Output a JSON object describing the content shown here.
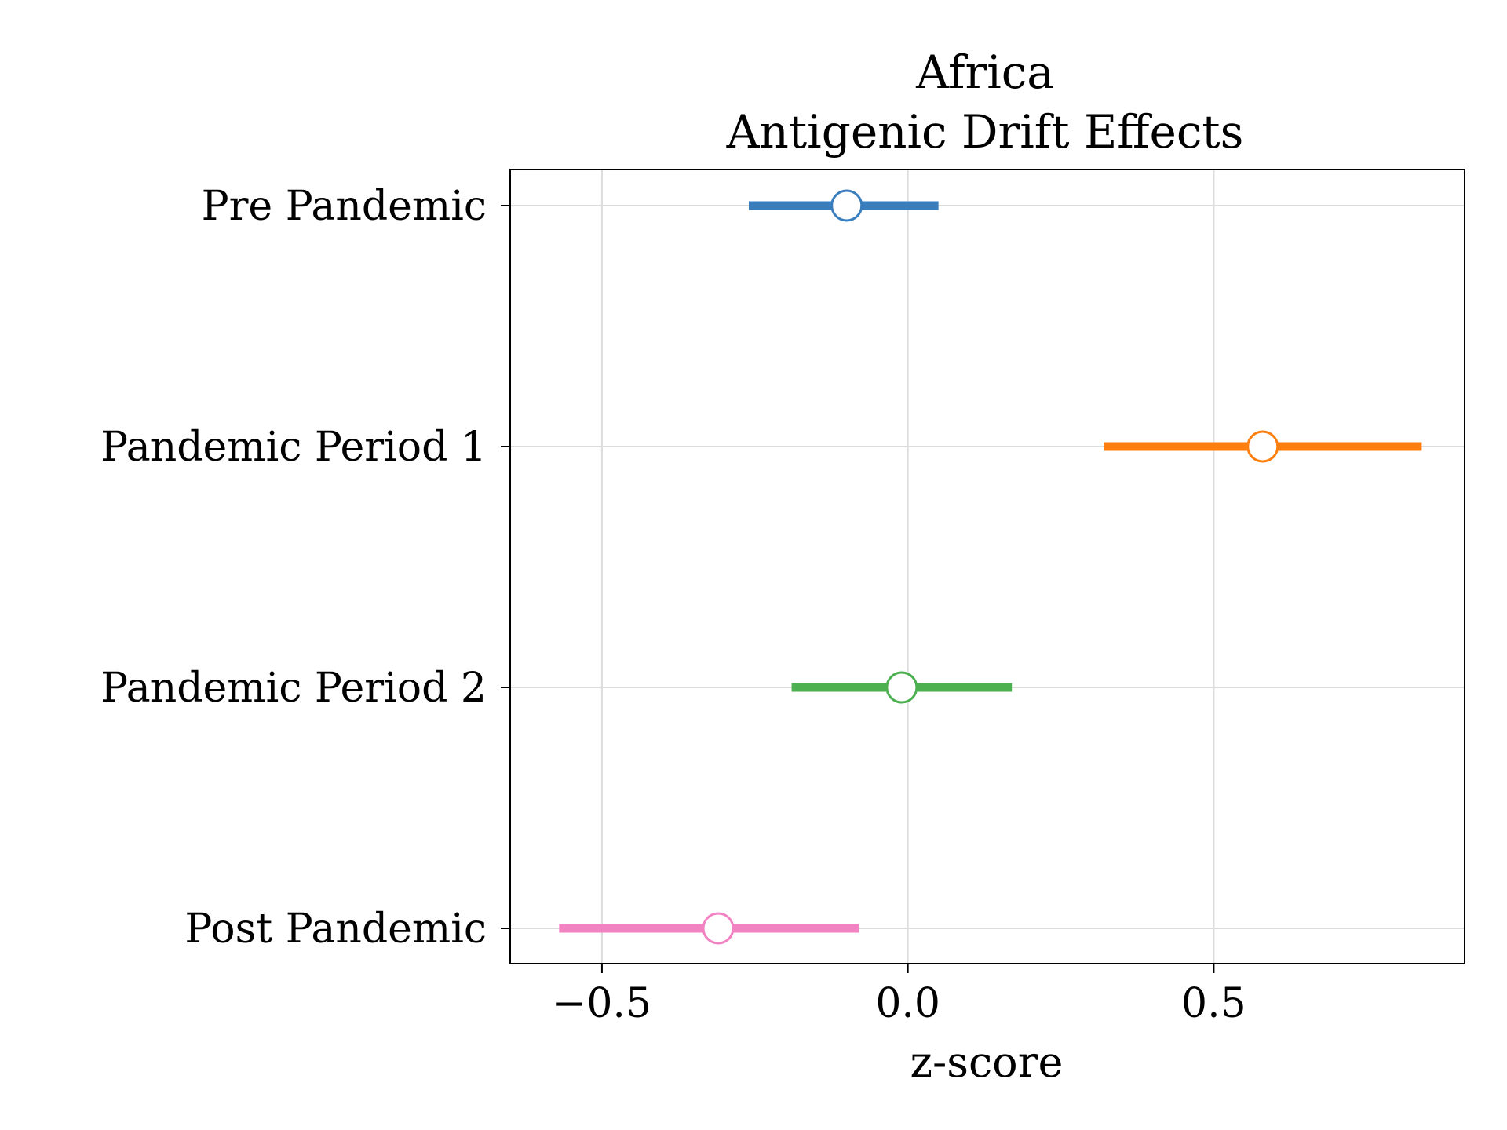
{
  "chart_data": {
    "type": "forest",
    "title_lines": [
      "Africa",
      "Antigenic Drift Effects"
    ],
    "xlabel": "z-score",
    "ylabel": "",
    "xlim": [
      -0.65,
      0.91
    ],
    "x_ticks": [
      -0.5,
      0.0,
      0.5
    ],
    "x_tick_labels": [
      "−0.5",
      "0.0",
      "0.5"
    ],
    "categories": [
      "Pre Pandemic",
      "Pandemic Period 1",
      "Pandemic Period 2",
      "Post Pandemic"
    ],
    "grid": true,
    "series": [
      {
        "category": "Pre Pandemic",
        "estimate": -0.1,
        "lower": -0.26,
        "upper": 0.05,
        "color": "#3a7dbd"
      },
      {
        "category": "Pandemic Period 1",
        "estimate": 0.58,
        "lower": 0.32,
        "upper": 0.84,
        "color": "#ff7f0e"
      },
      {
        "category": "Pandemic Period 2",
        "estimate": -0.01,
        "lower": -0.19,
        "upper": 0.17,
        "color": "#4caf50"
      },
      {
        "category": "Post Pandemic",
        "estimate": -0.31,
        "lower": -0.57,
        "upper": -0.08,
        "color": "#f282c2"
      }
    ]
  }
}
